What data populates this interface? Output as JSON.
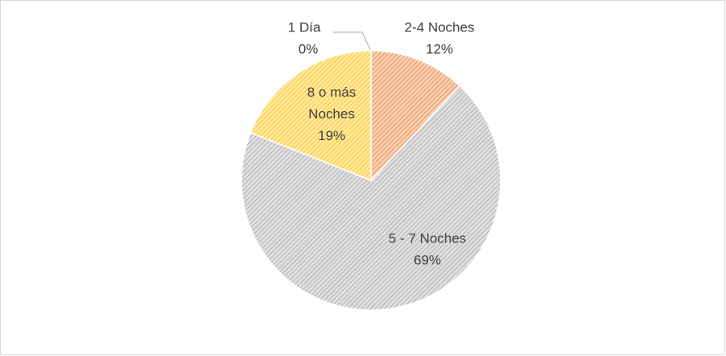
{
  "chart_data": {
    "type": "pie",
    "categories": [
      "1 Día",
      "2-4 Noches",
      "5 - 7 Noches",
      "8 o más Noches"
    ],
    "values": [
      0,
      12,
      69,
      19
    ],
    "value_labels": [
      "0%",
      "12%",
      "69%",
      "19%"
    ],
    "colors": [
      "#a5a5a5",
      "#ed7d31",
      "#a5a5a5",
      "#ffc000"
    ]
  }
}
